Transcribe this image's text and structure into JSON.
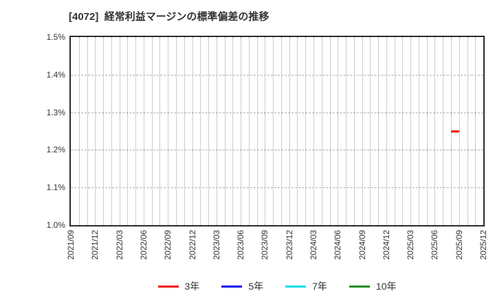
{
  "chart_data": {
    "type": "line",
    "title": "[4072]  経常利益マージンの標準偏差の推移",
    "background_color": "#ffffff",
    "y_axis": {
      "min": 1.0,
      "max": 1.5,
      "tick_step": 0.1,
      "ticks": [
        {
          "value": 1.5,
          "label": "1.5%"
        },
        {
          "value": 1.4,
          "label": "1.4%"
        },
        {
          "value": 1.3,
          "label": "1.3%"
        },
        {
          "value": 1.2,
          "label": "1.2%"
        },
        {
          "value": 1.1,
          "label": "1.1%"
        },
        {
          "value": 1.0,
          "label": "1.0%"
        }
      ]
    },
    "x_axis": {
      "start": "2021/09",
      "end": "2025/12",
      "months_span": 51,
      "minor_grid": "monthly",
      "tick_labels": [
        "2021/09",
        "2021/12",
        "2022/03",
        "2022/06",
        "2022/09",
        "2022/12",
        "2023/03",
        "2023/06",
        "2023/09",
        "2023/12",
        "2024/03",
        "2024/06",
        "2024/09",
        "2024/12",
        "2025/03",
        "2025/06",
        "2025/09",
        "2025/12"
      ]
    },
    "grid": {
      "horizontal_values": [
        1.1,
        1.2,
        1.3,
        1.4
      ],
      "on": true
    },
    "series": [
      {
        "name": "3年",
        "color": "#ee0000",
        "points": [
          {
            "x": "2025/08",
            "y": 1.25
          },
          {
            "x": "2025/09",
            "y": 1.25
          }
        ]
      },
      {
        "name": "5年",
        "color": "#0000ee",
        "points": []
      },
      {
        "name": "7年",
        "color": "#00dff0",
        "points": []
      },
      {
        "name": "10年",
        "color": "#1f8b1f",
        "points": []
      }
    ],
    "legend": {
      "position": "bottom",
      "entries": [
        {
          "label": "3年",
          "color": "#ee0000"
        },
        {
          "label": "5年",
          "color": "#0000ee"
        },
        {
          "label": "7年",
          "color": "#00dff0"
        },
        {
          "label": "10年",
          "color": "#1f8b1f"
        }
      ]
    }
  }
}
